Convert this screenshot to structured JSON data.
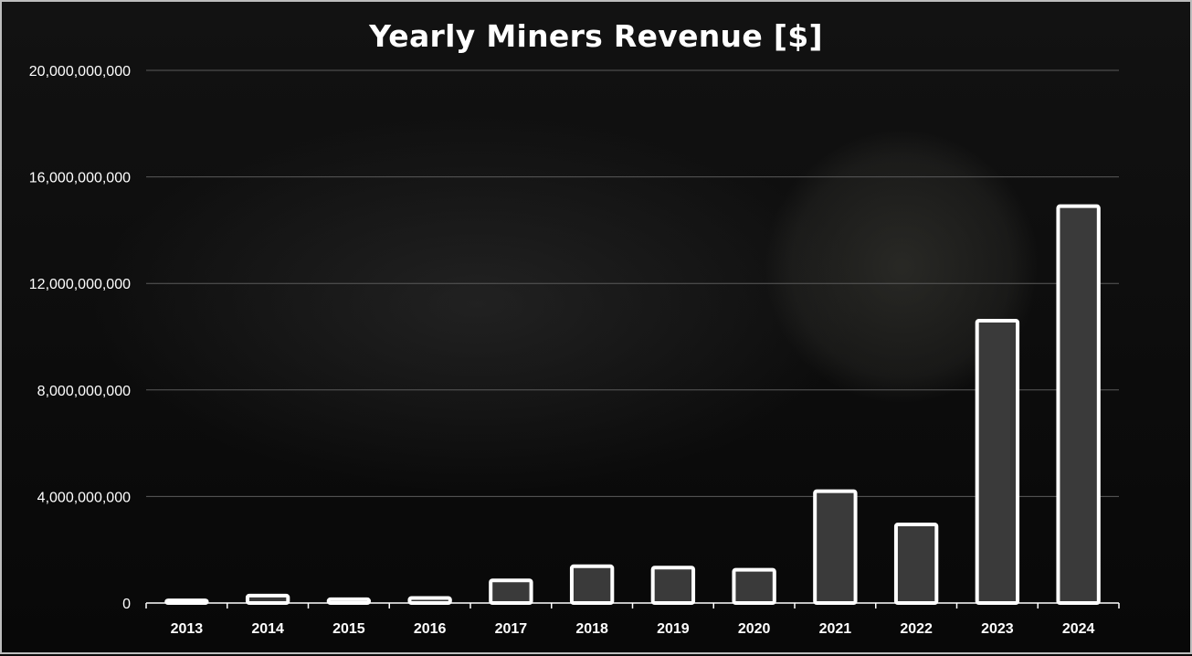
{
  "chart_data": {
    "type": "bar",
    "title": "Yearly Miners Revenue [$]",
    "xlabel": "",
    "ylabel": "",
    "ylim": [
      0,
      20000000000
    ],
    "y_ticks": [
      0,
      4000000000,
      8000000000,
      12000000000,
      16000000000,
      20000000000
    ],
    "y_tick_labels": [
      "0",
      "4,000,000,000",
      "8,000,000,000",
      "12,000,000,000",
      "16,000,000,000",
      "20,000,000,000"
    ],
    "categories": [
      "2013",
      "2014",
      "2015",
      "2016",
      "2017",
      "2018",
      "2019",
      "2020",
      "2021",
      "2022",
      "2023",
      "2024"
    ],
    "values": [
      100000000,
      280000000,
      140000000,
      190000000,
      850000000,
      1380000000,
      1330000000,
      1250000000,
      4200000000,
      2950000000,
      10600000000,
      14900000000
    ],
    "grid": true,
    "legend": "none",
    "colors": {
      "bar_fill": "#3a3a3a",
      "bar_stroke": "#ffffff",
      "grid": "#5a5a5a",
      "text": "#ffffff"
    }
  }
}
